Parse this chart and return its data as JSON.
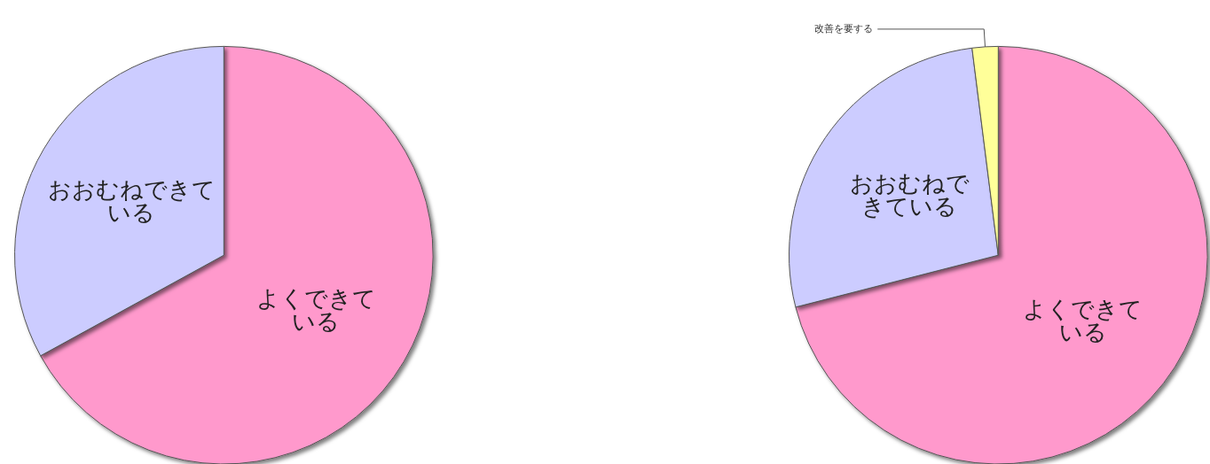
{
  "chart_data": [
    {
      "type": "pie",
      "categories": [
        "よくできている",
        "おおむねできている"
      ],
      "values": [
        67,
        33
      ],
      "colors": [
        "#ff99cc",
        "#ccccff"
      ]
    },
    {
      "type": "pie",
      "categories": [
        "よくできている",
        "おおむねできている",
        "改善を要する"
      ],
      "values": [
        71,
        27,
        2
      ],
      "colors": [
        "#ff99cc",
        "#ccccff",
        "#ffff99"
      ]
    }
  ]
}
